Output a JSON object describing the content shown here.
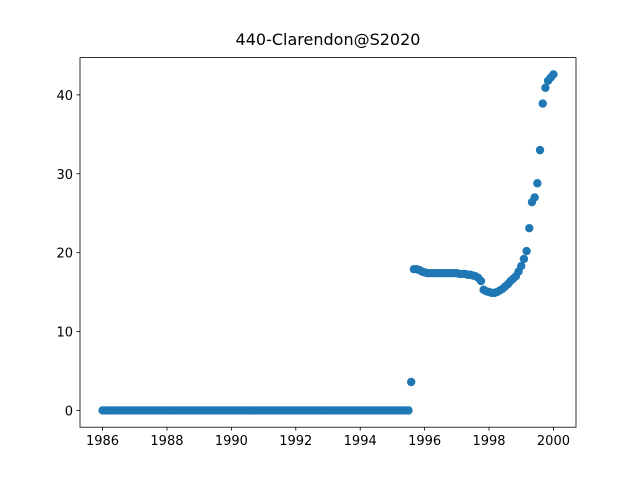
{
  "chart_data": {
    "type": "scatter",
    "title": "440-Clarendon@S2020",
    "color": "#1f77b4",
    "xlim": [
      1985.3,
      2000.7
    ],
    "xticks": [
      1986,
      1988,
      1990,
      1992,
      1994,
      1996,
      1998,
      2000
    ],
    "ylim": [
      -2.13,
      44.73
    ],
    "yticks": [
      0,
      10,
      20,
      30,
      40
    ],
    "x": [
      1986.0,
      1986.083,
      1986.167,
      1986.25,
      1986.333,
      1986.417,
      1986.5,
      1986.583,
      1986.667,
      1986.75,
      1986.833,
      1986.917,
      1987.0,
      1987.083,
      1987.167,
      1987.25,
      1987.333,
      1987.417,
      1987.5,
      1987.583,
      1987.667,
      1987.75,
      1987.833,
      1987.917,
      1988.0,
      1988.083,
      1988.167,
      1988.25,
      1988.333,
      1988.417,
      1988.5,
      1988.583,
      1988.667,
      1988.75,
      1988.833,
      1988.917,
      1989.0,
      1989.083,
      1989.167,
      1989.25,
      1989.333,
      1989.417,
      1989.5,
      1989.583,
      1989.667,
      1989.75,
      1989.833,
      1989.917,
      1990.0,
      1990.083,
      1990.167,
      1990.25,
      1990.333,
      1990.417,
      1990.5,
      1990.583,
      1990.667,
      1990.75,
      1990.833,
      1990.917,
      1991.0,
      1991.083,
      1991.167,
      1991.25,
      1991.333,
      1991.417,
      1991.5,
      1991.583,
      1991.667,
      1991.75,
      1991.833,
      1991.917,
      1992.0,
      1992.083,
      1992.167,
      1992.25,
      1992.333,
      1992.417,
      1992.5,
      1992.583,
      1992.667,
      1992.75,
      1992.833,
      1992.917,
      1993.0,
      1993.083,
      1993.167,
      1993.25,
      1993.333,
      1993.417,
      1993.5,
      1993.583,
      1993.667,
      1993.75,
      1993.833,
      1993.917,
      1994.0,
      1994.083,
      1994.167,
      1994.25,
      1994.333,
      1994.417,
      1994.5,
      1994.583,
      1994.667,
      1994.75,
      1994.833,
      1994.917,
      1995.0,
      1995.083,
      1995.167,
      1995.25,
      1995.333,
      1995.417,
      1995.5,
      1995.583,
      1995.667,
      1995.75,
      1995.833,
      1995.917,
      1996.0,
      1996.083,
      1996.167,
      1996.25,
      1996.333,
      1996.417,
      1996.5,
      1996.583,
      1996.667,
      1996.75,
      1996.833,
      1996.917,
      1997.0,
      1997.083,
      1997.167,
      1997.25,
      1997.333,
      1997.417,
      1997.5,
      1997.583,
      1997.667,
      1997.75,
      1997.833,
      1997.917,
      1998.0,
      1998.083,
      1998.167,
      1998.25,
      1998.333,
      1998.417,
      1998.5,
      1998.583,
      1998.667,
      1998.75,
      1998.833,
      1998.917,
      1999.0,
      1999.083,
      1999.167,
      1999.25,
      1999.333,
      1999.417,
      1999.5,
      1999.583,
      1999.667,
      1999.75,
      1999.833,
      1999.917,
      2000.0
    ],
    "y": [
      0,
      0,
      0,
      0,
      0,
      0,
      0,
      0,
      0,
      0,
      0,
      0,
      0,
      0,
      0,
      0,
      0,
      0,
      0,
      0,
      0,
      0,
      0,
      0,
      0,
      0,
      0,
      0,
      0,
      0,
      0,
      0,
      0,
      0,
      0,
      0,
      0,
      0,
      0,
      0,
      0,
      0,
      0,
      0,
      0,
      0,
      0,
      0,
      0,
      0,
      0,
      0,
      0,
      0,
      0,
      0,
      0,
      0,
      0,
      0,
      0,
      0,
      0,
      0,
      0,
      0,
      0,
      0,
      0,
      0,
      0,
      0,
      0,
      0,
      0,
      0,
      0,
      0,
      0,
      0,
      0,
      0,
      0,
      0,
      0,
      0,
      0,
      0,
      0,
      0,
      0,
      0,
      0,
      0,
      0,
      0,
      0,
      0,
      0,
      0,
      0,
      0,
      0,
      0,
      0,
      0,
      0,
      0,
      0,
      0,
      0,
      0,
      0,
      0,
      0,
      3.6,
      17.9,
      17.9,
      17.8,
      17.6,
      17.5,
      17.4,
      17.4,
      17.4,
      17.4,
      17.4,
      17.4,
      17.4,
      17.4,
      17.4,
      17.4,
      17.4,
      17.4,
      17.3,
      17.3,
      17.3,
      17.2,
      17.2,
      17.1,
      17.0,
      16.8,
      16.4,
      15.3,
      15.1,
      15.0,
      14.9,
      14.9,
      15.0,
      15.2,
      15.4,
      15.7,
      16.0,
      16.4,
      16.7,
      17.0,
      17.6,
      18.3,
      19.2,
      20.2,
      23.1,
      26.4,
      27.0,
      28.8,
      33.0,
      38.9,
      40.9,
      41.8,
      42.2,
      42.6
    ]
  }
}
